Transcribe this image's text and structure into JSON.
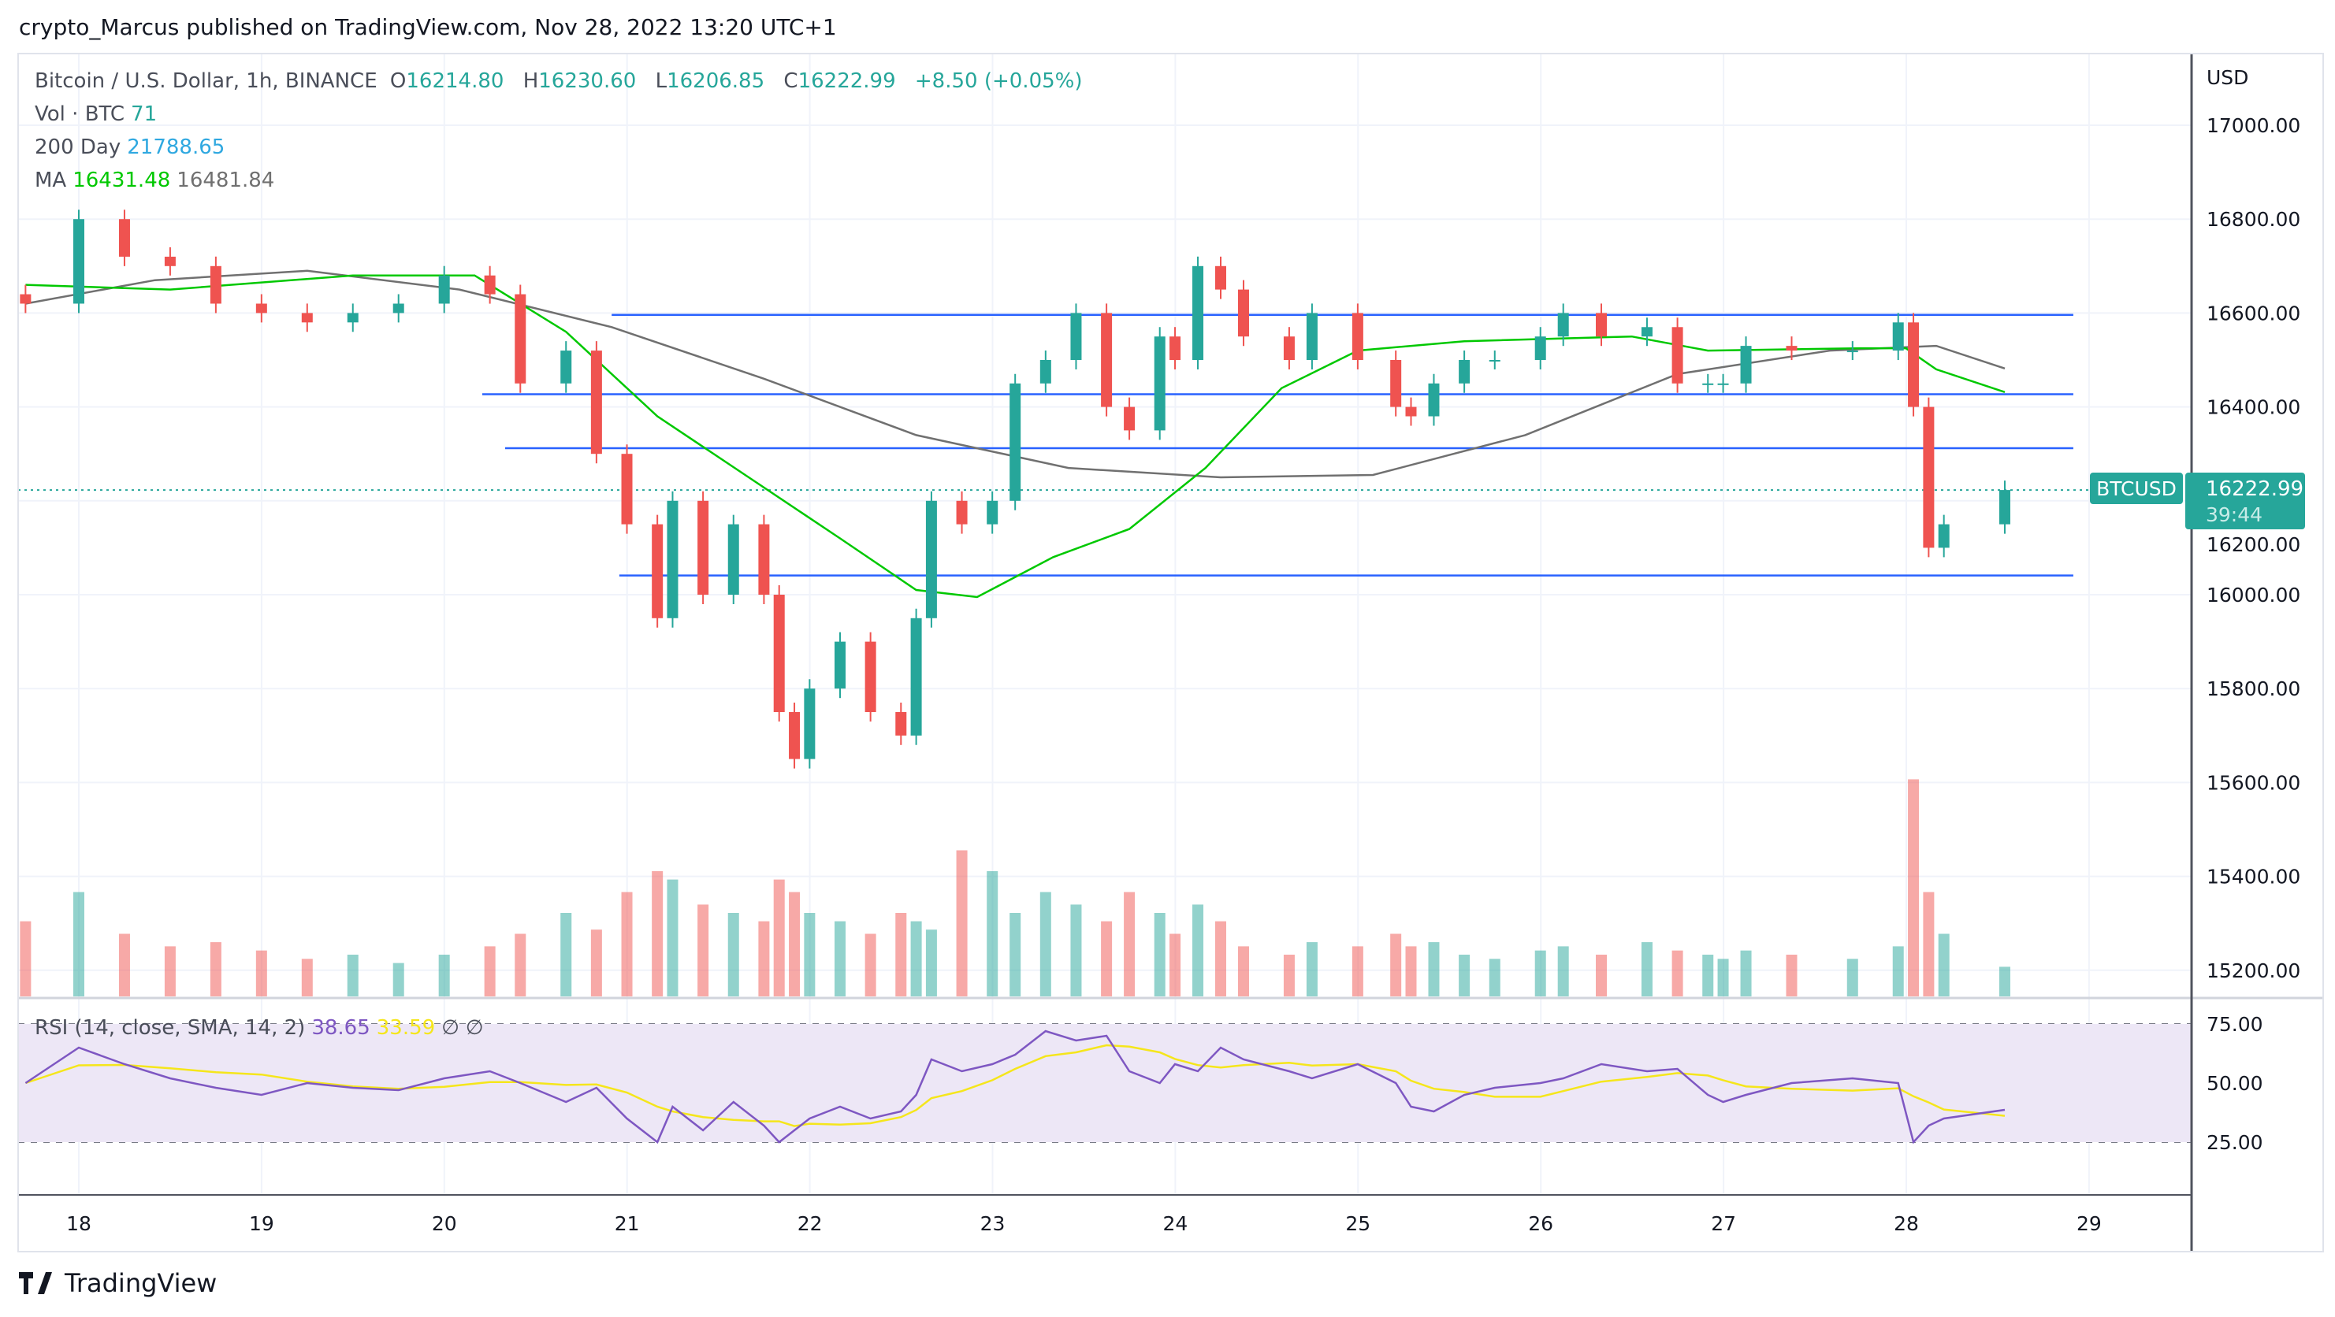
{
  "header": {
    "published": "crypto_Marcus published on TradingView.com, Nov 28, 2022 13:20 UTC+1",
    "symbol": "Bitcoin / U.S. Dollar, 1h, BINANCE",
    "o_label": "O",
    "o": "16214.80",
    "h_label": "H",
    "h": "16230.60",
    "l_label": "L",
    "l": "16206.85",
    "c_label": "C",
    "c": "16222.99",
    "change": "+8.50 (+0.05%)",
    "vol_label": "Vol · BTC",
    "vol": "71",
    "ma200_label": "200 Day",
    "ma200": "21788.65",
    "ma_label": "MA",
    "ma_fast": "16431.48",
    "ma_slow": "16481.84"
  },
  "rsi_legend": {
    "label": "RSI (14, close, SMA, 14, 2)",
    "rsi": "38.65",
    "sma": "33.59",
    "extra1": "∅",
    "extra2": "∅"
  },
  "price_label": {
    "symbol": "BTCUSD",
    "price": "16222.99",
    "countdown": "39:44"
  },
  "logo": "TradingView",
  "colors": {
    "up": "#26a69a",
    "down": "#ef5350",
    "ma_fast": "#00c800",
    "ma_slow": "#707070",
    "levels": "#2962ff",
    "rsi": "#7e57c2",
    "rsi_sma": "#f5e61b",
    "rsi_band": "#ede7f6"
  },
  "chart_data": {
    "type": "candlestick",
    "currency": "USD",
    "price_ticks": [
      "17000.00",
      "16800.00",
      "16600.00",
      "16400.00",
      "16200.00",
      "16000.00",
      "15800.00",
      "15600.00",
      "15400.00",
      "15200.00"
    ],
    "ylim": [
      15150,
      17200
    ],
    "date_ticks": [
      "18",
      "19",
      "20",
      "21",
      "22",
      "23",
      "24",
      "25",
      "26",
      "27",
      "28",
      "29"
    ],
    "t": [
      "2022-11-17T17:00",
      "2022-11-18T00:00",
      "2022-11-18T06:00",
      "2022-11-18T12:00",
      "2022-11-18T18:00",
      "2022-11-19T00:00",
      "2022-11-19T06:00",
      "2022-11-19T12:00",
      "2022-11-19T18:00",
      "2022-11-20T00:00",
      "2022-11-20T06:00",
      "2022-11-20T10:00",
      "2022-11-20T16:00",
      "2022-11-20T20:00",
      "2022-11-21T00:00",
      "2022-11-21T04:00",
      "2022-11-21T06:00",
      "2022-11-21T10:00",
      "2022-11-21T14:00",
      "2022-11-21T18:00",
      "2022-11-21T20:00",
      "2022-11-21T22:00",
      "2022-11-22T00:00",
      "2022-11-22T04:00",
      "2022-11-22T08:00",
      "2022-11-22T12:00",
      "2022-11-22T14:00",
      "2022-11-22T16:00",
      "2022-11-22T20:00",
      "2022-11-23T00:00",
      "2022-11-23T03:00",
      "2022-11-23T07:00",
      "2022-11-23T11:00",
      "2022-11-23T15:00",
      "2022-11-23T18:00",
      "2022-11-23T22:00",
      "2022-11-24T00:00",
      "2022-11-24T03:00",
      "2022-11-24T06:00",
      "2022-11-24T09:00",
      "2022-11-24T15:00",
      "2022-11-24T18:00",
      "2022-11-25T00:00",
      "2022-11-25T05:00",
      "2022-11-25T07:00",
      "2022-11-25T10:00",
      "2022-11-25T14:00",
      "2022-11-25T18:00",
      "2022-11-26T00:00",
      "2022-11-26T03:00",
      "2022-11-26T08:00",
      "2022-11-26T14:00",
      "2022-11-26T18:00",
      "2022-11-26T22:00",
      "2022-11-27T00:00",
      "2022-11-27T03:00",
      "2022-11-27T09:00",
      "2022-11-27T17:00",
      "2022-11-27T23:00",
      "2022-11-28T01:00",
      "2022-11-28T03:00",
      "2022-11-28T05:00",
      "2022-11-28T13:00"
    ],
    "close": [
      16620,
      16800,
      16720,
      16700,
      16620,
      16600,
      16580,
      16600,
      16620,
      16680,
      16640,
      16450,
      16520,
      16300,
      16150,
      15950,
      16200,
      16000,
      16150,
      16000,
      15750,
      15650,
      15800,
      15900,
      15750,
      15700,
      15950,
      16200,
      16150,
      16200,
      16450,
      16500,
      16600,
      16400,
      16350,
      16550,
      16500,
      16700,
      16650,
      16550,
      16500,
      16600,
      16500,
      16400,
      16380,
      16450,
      16500,
      16500,
      16550,
      16600,
      16550,
      16570,
      16450,
      16450,
      16450,
      16530,
      16520,
      16520,
      16580,
      16400,
      16100,
      16150,
      16222.99
    ],
    "volume": [
      180,
      250,
      150,
      120,
      130,
      110,
      90,
      100,
      80,
      100,
      120,
      150,
      200,
      160,
      250,
      300,
      280,
      220,
      200,
      180,
      280,
      250,
      200,
      180,
      150,
      200,
      180,
      160,
      350,
      300,
      200,
      250,
      220,
      180,
      250,
      200,
      150,
      220,
      180,
      120,
      100,
      130,
      120,
      150,
      120,
      130,
      100,
      90,
      110,
      120,
      100,
      130,
      110,
      100,
      90,
      110,
      100,
      90,
      120,
      520,
      250,
      150,
      71
    ],
    "rsi": [
      50,
      65,
      58,
      52,
      48,
      45,
      50,
      48,
      47,
      52,
      55,
      50,
      42,
      48,
      35,
      25,
      40,
      30,
      42,
      32,
      25,
      30,
      35,
      40,
      35,
      38,
      45,
      60,
      55,
      58,
      62,
      72,
      68,
      70,
      55,
      50,
      58,
      55,
      65,
      60,
      55,
      52,
      58,
      50,
      40,
      38,
      45,
      48,
      50,
      52,
      58,
      55,
      56,
      45,
      42,
      45,
      50,
      52,
      50,
      25,
      32,
      35,
      38.65
    ],
    "rsi_levels": [
      "75.00",
      "50.00",
      "25.00"
    ],
    "ma_fast": [
      [
        "2022-11-17T17:00",
        16660
      ],
      [
        "2022-11-18T12:00",
        16650
      ],
      [
        "2022-11-19T12:00",
        16680
      ],
      [
        "2022-11-20T04:00",
        16680
      ],
      [
        "2022-11-20T16:00",
        16560
      ],
      [
        "2022-11-21T04:00",
        16380
      ],
      [
        "2022-11-21T16:00",
        16250
      ],
      [
        "2022-11-22T04:00",
        16120
      ],
      [
        "2022-11-22T14:00",
        16010
      ],
      [
        "2022-11-22T22:00",
        15995
      ],
      [
        "2022-11-23T08:00",
        16080
      ],
      [
        "2022-11-23T18:00",
        16140
      ],
      [
        "2022-11-24T04:00",
        16270
      ],
      [
        "2022-11-24T14:00",
        16440
      ],
      [
        "2022-11-25T00:00",
        16520
      ],
      [
        "2022-11-25T14:00",
        16540
      ],
      [
        "2022-11-26T12:00",
        16550
      ],
      [
        "2022-11-26T22:00",
        16520
      ],
      [
        "2022-11-27T18:00",
        16525
      ],
      [
        "2022-11-28T00:00",
        16525
      ],
      [
        "2022-11-28T04:00",
        16480
      ],
      [
        "2022-11-28T13:00",
        16431.48
      ]
    ],
    "ma_slow": [
      [
        "2022-11-17T17:00",
        16620
      ],
      [
        "2022-11-18T10:00",
        16670
      ],
      [
        "2022-11-19T06:00",
        16690
      ],
      [
        "2022-11-20T02:00",
        16650
      ],
      [
        "2022-11-20T22:00",
        16570
      ],
      [
        "2022-11-21T18:00",
        16460
      ],
      [
        "2022-11-22T14:00",
        16340
      ],
      [
        "2022-11-23T10:00",
        16270
      ],
      [
        "2022-11-24T06:00",
        16250
      ],
      [
        "2022-11-25T02:00",
        16255
      ],
      [
        "2022-11-25T22:00",
        16340
      ],
      [
        "2022-11-26T18:00",
        16470
      ],
      [
        "2022-11-27T14:00",
        16520
      ],
      [
        "2022-11-28T04:00",
        16530
      ],
      [
        "2022-11-28T13:00",
        16481.84
      ]
    ],
    "levels": [
      {
        "price": 16596,
        "from": "2022-11-20T22:00",
        "to": "2022-11-28T22:00"
      },
      {
        "price": 16427,
        "from": "2022-11-20T05:00",
        "to": "2022-11-28T22:00"
      },
      {
        "price": 16312,
        "from": "2022-11-20T08:00",
        "to": "2022-11-28T22:00"
      },
      {
        "price": 16041,
        "from": "2022-11-20T23:00",
        "to": "2022-11-28T22:00"
      }
    ],
    "last_price": 16222.99
  }
}
